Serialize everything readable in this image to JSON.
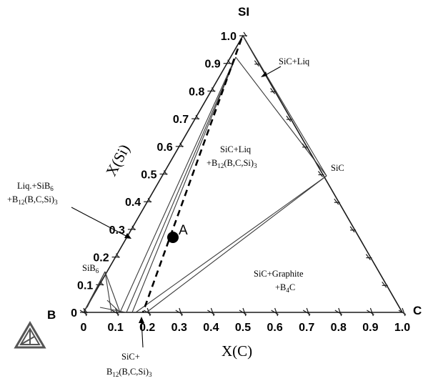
{
  "corners": {
    "si": "SI",
    "b": "B",
    "c": "C"
  },
  "axes": {
    "bottom_title": "X(C)",
    "left_title": "X(Si)",
    "bottom_ticks": [
      "0",
      "0.1",
      "0.2",
      "0.3",
      "0.4",
      "0.5",
      "0.6",
      "0.7",
      "0.8",
      "0.9",
      "1.0"
    ],
    "left_ticks": [
      "0",
      "0.1",
      "0.2",
      "0.3",
      "0.4",
      "0.5",
      "0.6",
      "0.7",
      "0.8",
      "0.9",
      "1.0"
    ]
  },
  "regions": {
    "sic_liq": "SiC+Liq",
    "sic_liq_b12_line1": "SiC+Liq",
    "sic_liq_b12_b": "+B",
    "sic_liq_b12_sub": "12",
    "sic_liq_b12_tail": "(B,C,Si)",
    "sic_liq_b12_sub2": "3",
    "liq_sib6_line1": "Liq.+SiB",
    "liq_sib6_sub": "6",
    "liq_sib6_b": "+B",
    "liq_sib6_sub2": "12",
    "liq_sib6_tail": "(B,C,Si)",
    "liq_sib6_sub3": "3",
    "sic_graphite_line1": "SiC+Graphite",
    "sic_graphite_b": "+B",
    "sic_graphite_sub": "4",
    "sic_graphite_tail": "C",
    "sic_b12_line1": "SiC+",
    "sic_b12_b": "B",
    "sic_b12_sub": "12",
    "sic_b12_tail": "(B,C,Si)",
    "sic_b12_sub2": "3"
  },
  "phases": {
    "sic": "SiC",
    "sib6": "SiB",
    "sib6_sub": "6"
  },
  "point": {
    "label": "A",
    "x_c": 0.275,
    "x_si": 0.28
  },
  "logo": "thermo-calc-triangle-logo",
  "colors": {
    "line": "#1a1a1a",
    "background": "#ffffff"
  }
}
